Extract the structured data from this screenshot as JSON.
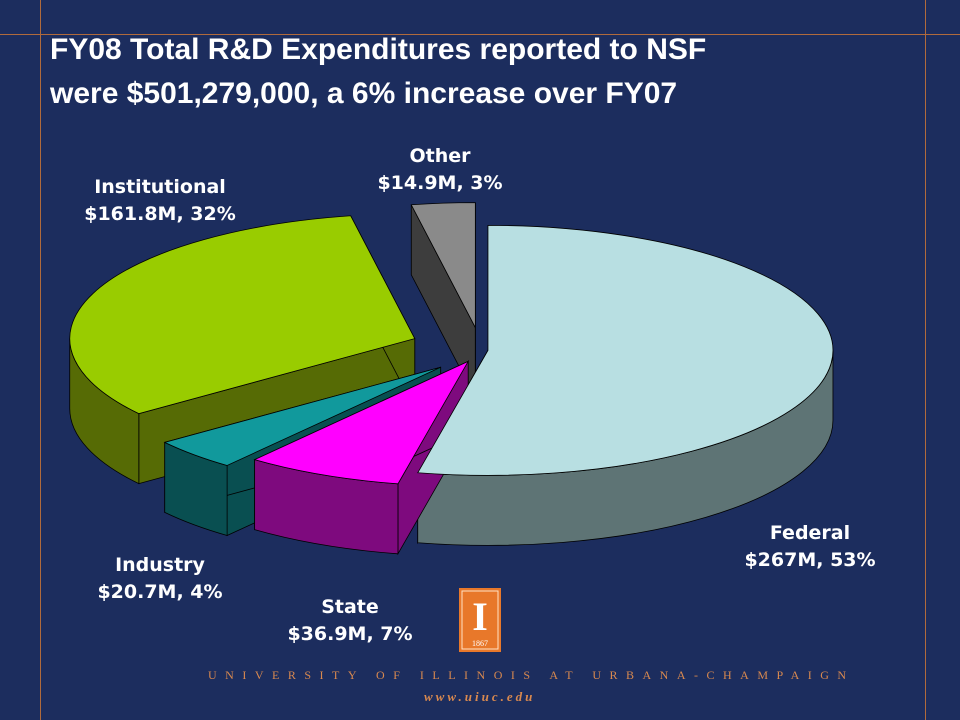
{
  "slide": {
    "title_line1": "FY08 Total R&D Expenditures reported to NSF",
    "title_line2": "were $501,279,000, a 6% increase over FY07",
    "footer_university": "UNIVERSITY OF ILLINOIS AT URBANA-CHAMPAIGN",
    "footer_website": "www.uiuc.edu",
    "logo_mark": "I",
    "logo_year": "1867"
  },
  "colors": {
    "background": "#1c2d5e",
    "frame_lines": "#b06a3c",
    "footer_text": "#d9894f",
    "logo_orange": "#e8782a"
  },
  "chart_data": {
    "type": "pie",
    "style": "3d-exploded",
    "total": "$501,279,000",
    "slices": [
      {
        "name": "Federal",
        "value_label": "$267M",
        "percent_label": "53%",
        "value": 267.0,
        "color": "#b8dfe2",
        "side_color": "#5e7475"
      },
      {
        "name": "State",
        "value_label": "$36.9M",
        "percent_label": "7%",
        "value": 36.9,
        "color": "#ff00ff",
        "side_color": "#7e0a7e"
      },
      {
        "name": "Industry",
        "value_label": "$20.7M",
        "percent_label": "4%",
        "value": 20.7,
        "color": "#11999c",
        "side_color": "#094f51"
      },
      {
        "name": "Institutional",
        "value_label": "$161.8M",
        "percent_label": "32%",
        "value": 161.8,
        "color": "#99cc00",
        "side_color": "#566b05"
      },
      {
        "name": "Other",
        "value_label": "$14.9M",
        "percent_label": "3%",
        "value": 14.9,
        "color": "#8a8a8a",
        "side_color": "#3d3d3d"
      }
    ]
  }
}
